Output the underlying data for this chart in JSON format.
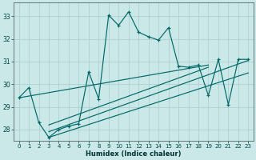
{
  "xlabel": "Humidex (Indice chaleur)",
  "bg_color": "#cbe8e8",
  "grid_color": "#a8cccc",
  "line_color": "#006868",
  "xlim_min": -0.5,
  "xlim_max": 23.5,
  "ylim_min": 27.5,
  "ylim_max": 33.6,
  "xticks": [
    0,
    1,
    2,
    3,
    4,
    5,
    6,
    7,
    8,
    9,
    10,
    11,
    12,
    13,
    14,
    15,
    16,
    17,
    18,
    19,
    20,
    21,
    22,
    23
  ],
  "yticks": [
    28,
    29,
    30,
    31,
    32,
    33
  ],
  "line1_x": [
    0,
    1,
    2,
    3,
    4,
    5,
    6,
    7,
    8,
    9,
    10,
    11,
    12,
    13,
    14,
    15,
    16,
    17,
    18,
    19,
    20,
    21,
    22,
    23
  ],
  "line1_y": [
    29.4,
    29.85,
    28.3,
    27.65,
    28.0,
    28.15,
    28.25,
    30.55,
    29.35,
    33.05,
    32.6,
    33.2,
    32.3,
    32.1,
    31.95,
    32.5,
    30.8,
    30.75,
    30.85,
    29.5,
    31.1,
    29.1,
    31.1,
    31.1
  ],
  "reg_lines": [
    {
      "x": [
        0,
        19
      ],
      "y": [
        29.4,
        30.85
      ]
    },
    {
      "x": [
        3,
        19
      ],
      "y": [
        28.2,
        30.75
      ]
    },
    {
      "x": [
        3,
        23
      ],
      "y": [
        27.9,
        31.05
      ]
    },
    {
      "x": [
        3,
        23
      ],
      "y": [
        27.65,
        30.5
      ]
    }
  ]
}
